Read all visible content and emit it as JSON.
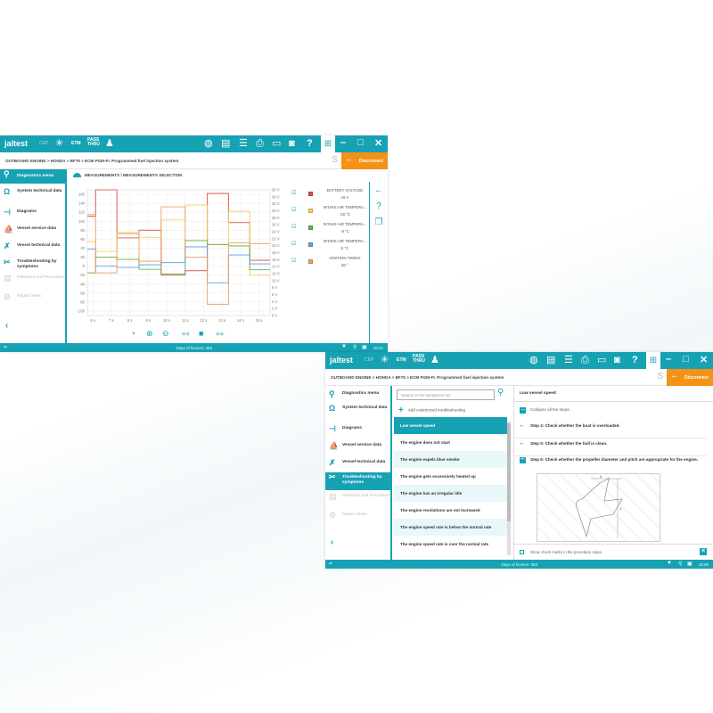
{
  "app": {
    "logo": "jaltest",
    "cep": "CEP",
    "etm": "ETM",
    "pass_thru": "PASS THRU",
    "disconnect": "Disconnect",
    "breadcrumb": "OUTBOARD ENGINE  >  HONDA  >  BF75  >  ECM PGM-FI. Programmed fuel injection system",
    "licence": "Days of licence: 363"
  },
  "sidebar": {
    "items": [
      {
        "label": "Diagnostics menu",
        "icon": "diagnostics-icon",
        "selected": true
      },
      {
        "label": "System technical data",
        "icon": "omega-icon"
      },
      {
        "label": "Diagrams",
        "icon": "diagram-icon"
      },
      {
        "label": "Vessel service data",
        "icon": "boat-icon"
      },
      {
        "label": "Vessel technical data",
        "icon": "wrench-icon"
      },
      {
        "label": "Troubleshooting by symptoms",
        "icon": "tools-icon"
      },
      {
        "label": "Releases and Procedures",
        "icon": "document-icon",
        "disabled": true
      },
      {
        "label": "Repair times",
        "icon": "gear-clock-icon",
        "disabled": true
      }
    ]
  },
  "window1": {
    "time": "16:22",
    "title": "MEASUREMENTS \\ MEASUREMENTS SELECTION",
    "legend": [
      {
        "name": "BATTERY VOLTAGE",
        "value": "16 V",
        "color": "#d9534f",
        "checked": true
      },
      {
        "name": "INTAKE AIR TEMPERA...",
        "value": "-20 °C",
        "color": "#f2d25c",
        "checked": true
      },
      {
        "name": "INTAKE AIR TEMPERA...",
        "value": "-8 °C",
        "color": "#6ab04c",
        "checked": true
      },
      {
        "name": "INTAKE AIR TEMPERA...",
        "value": "5 °C",
        "color": "#5aa9e6",
        "checked": true
      },
      {
        "name": "IGNITION TIMING",
        "value": "50 °",
        "color": "#f0a060",
        "checked": true
      }
    ]
  },
  "chart_data": {
    "type": "line",
    "step": true,
    "xlabel": "",
    "ylabel": "",
    "x_ticks": [
      "6 s",
      "7 s",
      "8 s",
      "9 s",
      "10 s",
      "11 s",
      "12 s",
      "13 s",
      "14 s",
      "15 s"
    ],
    "xlim": [
      5.7,
      15.6
    ],
    "ylim": [
      -110,
      170
    ],
    "y_ticks": [
      -100,
      -80,
      -60,
      -40,
      -20,
      0,
      20,
      40,
      60,
      80,
      100,
      120,
      140,
      160
    ],
    "y2_ticks": [
      "0 V",
      "2 V",
      "4 V",
      "6 V",
      "8 V",
      "10 V",
      "12 V",
      "14 V",
      "16 V",
      "18 V",
      "20 V",
      "22 V",
      "24 V",
      "26 V",
      "28 V",
      "30 V",
      "32 V",
      "34 V",
      "36 V"
    ],
    "grid": true,
    "breakpoints": [
      5.7,
      6.15,
      7.3,
      8.5,
      9.7,
      11.0,
      12.2,
      13.35,
      14.5,
      15.6
    ],
    "series": [
      {
        "name": "BATTERY VOLTAGE",
        "color": "#d9534f",
        "values": [
          111,
          170,
          63,
          80,
          -18,
          -10,
          162,
          97,
          13
        ]
      },
      {
        "name": "INTAKE AIR TEMPERA...",
        "color": "#f2d25c",
        "values": [
          55,
          33,
          75,
          64,
          103,
          136,
          48,
          122,
          -20
        ]
      },
      {
        "name": "INTAKE AIR TEMPERA...",
        "color": "#6ab04c",
        "values": [
          -15,
          20,
          15,
          -7,
          -20,
          57,
          48,
          45,
          -8
        ]
      },
      {
        "name": "INTAKE AIR TEMPERA...",
        "color": "#5aa9e6",
        "values": [
          38,
          0,
          -3,
          3,
          8,
          43,
          -37,
          25,
          5
        ]
      },
      {
        "name": "IGNITION TIMING",
        "color": "#f0a060",
        "values": [
          115,
          -15,
          72,
          11,
          132,
          20,
          -85,
          52,
          50
        ]
      }
    ]
  },
  "window2": {
    "time": "16:09",
    "search_placeholder": "Search in the symptoms list",
    "add_label": "Add customized troubleshooting",
    "symptoms": [
      "Low vessel speed",
      "The engine does not start",
      "The engine expels blue smoke",
      "The engine gets excessively heated up",
      "The engine has an irregular idle",
      "The engine revolutions are not increased",
      "The engine speed rate is below the normal rate",
      "The engine speed rate is over the normal rate"
    ],
    "detail_title": "Low vessel speed",
    "collapse": "Collapse all the steps",
    "steps": [
      "Step 4: Check whether the boat is overloaded.",
      "Step 5: Check whether the hull is clean.",
      "Step 6: Check whether the propeller diameter and pitch are appropriate for the engine."
    ],
    "img_labels": [
      "2",
      "1"
    ],
    "show_checks": "Show check marks in the procedure steps."
  }
}
